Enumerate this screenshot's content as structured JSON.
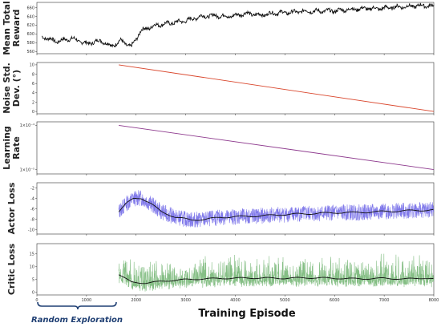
{
  "chart_data": [
    {
      "type": "line",
      "ylabel": [
        "Mean Total",
        "Reward"
      ],
      "xlim": [
        0,
        8000
      ],
      "ylim": [
        555,
        672
      ],
      "yticks": [
        560,
        580,
        600,
        620,
        640,
        660
      ],
      "series": [
        {
          "color": "#111111",
          "x": [
            100,
            400,
            700,
            1000,
            1300,
            1500,
            1700,
            1900,
            2100,
            2400,
            2700,
            3000,
            3300,
            3600,
            3900,
            4200,
            4500,
            4800,
            5100,
            5400,
            5700,
            6000,
            6300,
            6600,
            6900,
            7200,
            7500,
            7800,
            8000
          ],
          "values": [
            594,
            583,
            590,
            578,
            585,
            572,
            585,
            570,
            608,
            620,
            625,
            630,
            640,
            642,
            640,
            647,
            643,
            648,
            649,
            652,
            652,
            653,
            656,
            658,
            658,
            661,
            663,
            665,
            663
          ]
        }
      ]
    },
    {
      "type": "line",
      "ylabel": [
        "Noise Std.",
        "Dev. (°)"
      ],
      "xlim": [
        0,
        8000
      ],
      "ylim": [
        -0.5,
        10.5
      ],
      "yticks": [
        0,
        2,
        4,
        6,
        8,
        10
      ],
      "series": [
        {
          "color": "#d9452b",
          "x": [
            1650,
            8000
          ],
          "values": [
            10,
            0
          ]
        }
      ]
    },
    {
      "type": "line",
      "ylabel": [
        "Learning",
        "Rate"
      ],
      "log_y": true,
      "xlim": [
        0,
        8000
      ],
      "ylim": [
        8e-06,
        0.00012
      ],
      "ytick_values": [
        0.0001,
        1e-05
      ],
      "yticks": [
        "1×10⁻⁴",
        "1×10⁻⁵"
      ],
      "series": [
        {
          "color": "#8e3a8e",
          "x": [
            1650,
            8000
          ],
          "values": [
            0.0001,
            1e-05
          ]
        }
      ]
    },
    {
      "type": "line",
      "ylabel": [
        "Actor Loss"
      ],
      "xlim": [
        0,
        8000
      ],
      "ylim": [
        -10.8,
        -1.0
      ],
      "yticks": [
        -2,
        -4,
        -6,
        -8,
        -10
      ],
      "series": [
        {
          "name": "raw",
          "color": "#6b63e6",
          "x": [
            1650,
            1800,
            1950,
            2100,
            2300,
            2500,
            2800,
            3100,
            3400,
            3700,
            4000,
            4300,
            4600,
            4900,
            5200,
            5500,
            5800,
            6100,
            6400,
            6700,
            7000,
            7300,
            7600,
            8000
          ],
          "values": [
            -6.5,
            -5.0,
            -4.0,
            -3.9,
            -5.0,
            -6.5,
            -7.6,
            -8.1,
            -8.0,
            -7.6,
            -7.5,
            -7.4,
            -7.3,
            -7.1,
            -7.0,
            -6.9,
            -6.8,
            -6.7,
            -6.7,
            -6.6,
            -6.5,
            -6.4,
            -6.3,
            -6.2
          ]
        },
        {
          "name": "smoothed",
          "color": "#111111",
          "x": [
            1650,
            1800,
            1950,
            2100,
            2300,
            2500,
            2800,
            3100,
            3400,
            3700,
            4000,
            4300,
            4600,
            4900,
            5200,
            5500,
            5800,
            6100,
            6400,
            6700,
            7000,
            7300,
            7600,
            8000
          ],
          "values": [
            -6.5,
            -5.0,
            -4.0,
            -3.9,
            -5.0,
            -6.5,
            -7.6,
            -8.1,
            -8.0,
            -7.6,
            -7.5,
            -7.4,
            -7.3,
            -7.1,
            -7.0,
            -6.9,
            -6.8,
            -6.7,
            -6.7,
            -6.6,
            -6.5,
            -6.4,
            -6.3,
            -6.2
          ]
        }
      ]
    },
    {
      "type": "line",
      "ylabel": [
        "Critic Loss"
      ],
      "xlim": [
        0,
        8000
      ],
      "ylim": [
        -1.0,
        19.0
      ],
      "yticks": [
        0,
        5,
        10,
        15
      ],
      "xticks": [
        0,
        1000,
        2000,
        3000,
        4000,
        5000,
        6000,
        7000,
        8000
      ],
      "xlabel": "Training Episode",
      "series": [
        {
          "name": "raw",
          "color": "#6fb36f",
          "x": [
            1650,
            1900,
            2200,
            2600,
            3000,
            3400,
            3800,
            4200,
            4600,
            5000,
            5400,
            5800,
            6200,
            6600,
            7000,
            7400,
            7800,
            8000
          ],
          "values": [
            7.0,
            4.0,
            3.6,
            4.5,
            5.0,
            5.3,
            5.5,
            5.6,
            5.6,
            5.5,
            5.7,
            5.6,
            5.4,
            5.3,
            5.5,
            5.2,
            5.6,
            5.2
          ]
        },
        {
          "name": "smoothed",
          "color": "#111111",
          "x": [
            1650,
            1900,
            2200,
            2600,
            3000,
            3400,
            3800,
            4200,
            4600,
            5000,
            5400,
            5800,
            6200,
            6600,
            7000,
            7400,
            7800,
            8000
          ],
          "values": [
            7.0,
            4.0,
            3.6,
            4.5,
            5.0,
            5.3,
            5.5,
            5.6,
            5.6,
            5.5,
            5.7,
            5.6,
            5.4,
            5.3,
            5.5,
            5.2,
            5.6,
            5.2
          ]
        }
      ]
    }
  ],
  "annotation": {
    "text": "Random Exploration",
    "x_start": 0,
    "x_end": 1650
  }
}
